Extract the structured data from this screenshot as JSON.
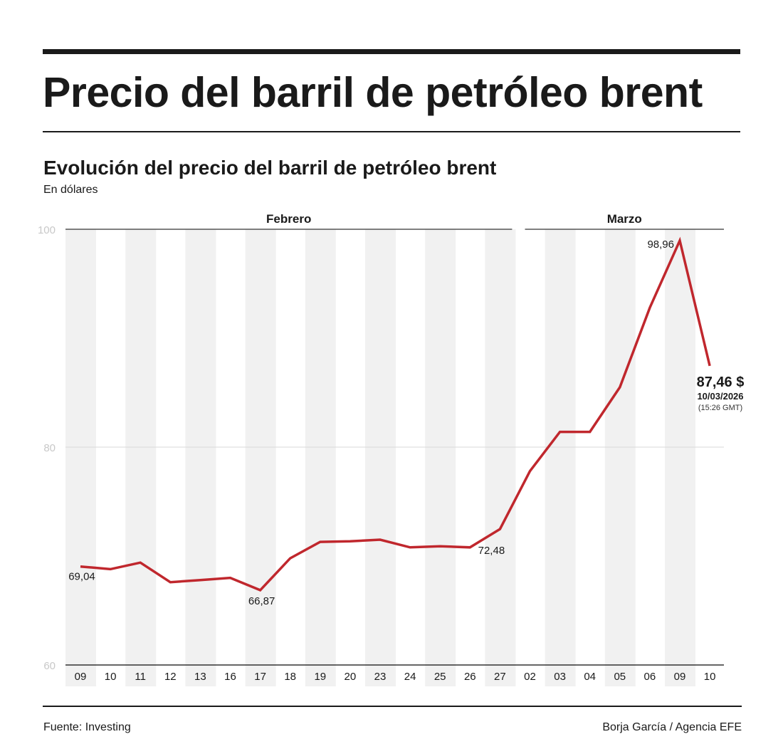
{
  "header": {
    "title": "Precio del barril de petróleo brent"
  },
  "chart_data": {
    "type": "line",
    "title": "Evolución del precio del barril de petróleo brent",
    "subtitle": "En dólares",
    "ylabel": "",
    "xlabel": "",
    "ylim": [
      60,
      100
    ],
    "yticks": [
      "60",
      "80",
      "100"
    ],
    "ytick_values": [
      60,
      80,
      100
    ],
    "grid": true,
    "month_groups": [
      {
        "label": "Febrero",
        "from": 0,
        "to": 14
      },
      {
        "label": "Marzo",
        "from": 15,
        "to": 21
      }
    ],
    "categories": [
      "09",
      "10",
      "11",
      "12",
      "13",
      "16",
      "17",
      "18",
      "19",
      "20",
      "23",
      "24",
      "25",
      "26",
      "27",
      "02",
      "03",
      "04",
      "05",
      "06",
      "09",
      "10"
    ],
    "series": [
      {
        "name": "Brent",
        "color": "#c0272d",
        "values": [
          69.04,
          68.8,
          69.4,
          67.6,
          67.8,
          68.0,
          66.87,
          69.8,
          71.3,
          71.35,
          71.5,
          70.8,
          70.9,
          70.8,
          72.48,
          77.8,
          81.4,
          81.4,
          85.5,
          92.8,
          98.96,
          87.46
        ]
      }
    ],
    "annotations": [
      {
        "index": 0,
        "text": "69,04"
      },
      {
        "index": 6,
        "text": "66,87"
      },
      {
        "index": 14,
        "text": "72,48"
      },
      {
        "index": 20,
        "text": "98,96"
      }
    ],
    "last_value": {
      "value_text": "87,46 $",
      "date": "10/03/2026",
      "time": "(15:26 GMT)"
    }
  },
  "footer": {
    "source": "Fuente: Investing",
    "credit": "Borja García / Agencia EFE"
  }
}
